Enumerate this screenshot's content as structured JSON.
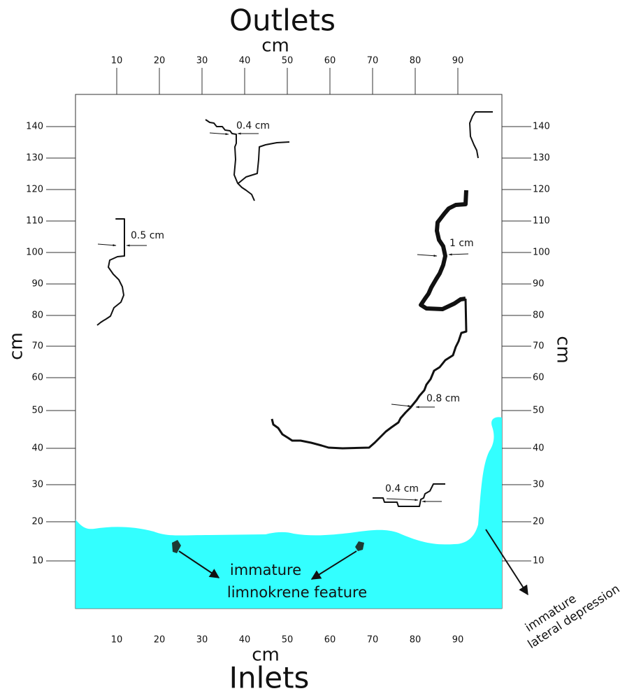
{
  "title_top": "Outlets",
  "title_bottom": "Inlets",
  "axis_labels": {
    "top": "cm",
    "bottom": "cm",
    "left": "cm",
    "right": "cm"
  },
  "xticks": [
    10,
    20,
    30,
    40,
    50,
    60,
    70,
    80,
    90
  ],
  "yticks": [
    10,
    20,
    30,
    40,
    50,
    60,
    70,
    80,
    90,
    100,
    110,
    120,
    130,
    140
  ],
  "annotations": [
    "0.4 cm",
    "0.5 cm",
    "1 cm",
    "0.8 cm",
    "0.4 cm"
  ],
  "features": {
    "limnokrene": [
      "immature",
      "limnokrene feature"
    ],
    "lateral": [
      "immature",
      "lateral depression"
    ]
  }
}
